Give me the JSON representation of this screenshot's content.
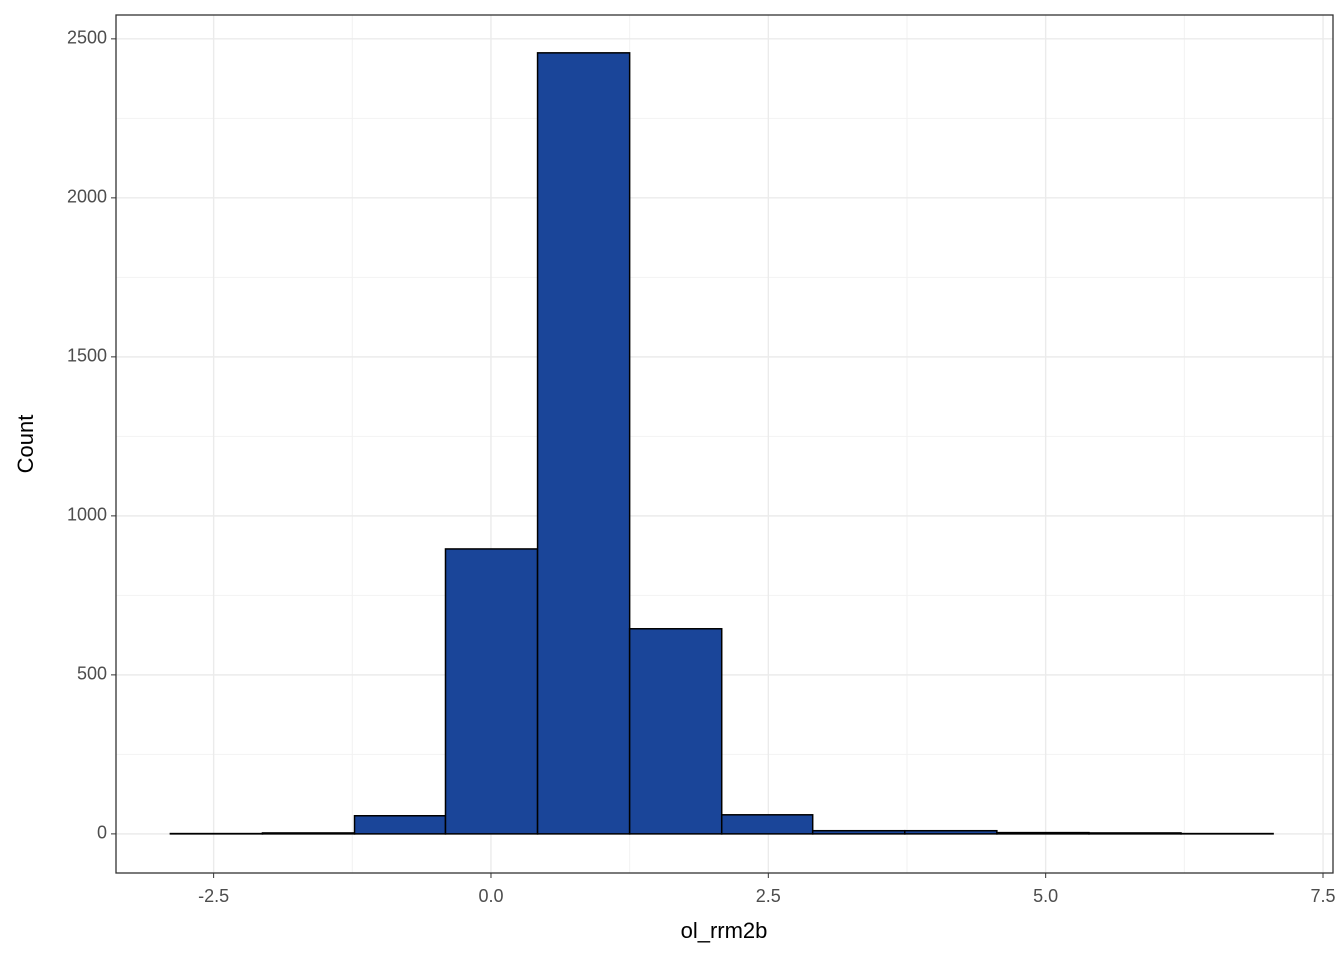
{
  "chart_data": {
    "type": "histogram",
    "x_label": "ol_rrm2b",
    "y_label": "Count",
    "bins": [
      -2.89,
      -2.06,
      -1.23,
      -0.41,
      0.42,
      1.25,
      2.08,
      2.9,
      3.73,
      4.56,
      5.39,
      6.22,
      7.05
    ],
    "counts": [
      1,
      3,
      57,
      896,
      2456,
      645,
      60,
      10,
      10,
      4,
      3,
      1
    ],
    "color": "#1a4599",
    "edge_color": "#000000",
    "xlim": [
      -3.38,
      7.59
    ],
    "ylim": [
      -123,
      2575
    ],
    "xticks": [
      {
        "value": -2.5,
        "label": "-2.5"
      },
      {
        "value": 0,
        "label": "0.0"
      },
      {
        "value": 2.5,
        "label": "2.5"
      },
      {
        "value": 5,
        "label": "5.0"
      },
      {
        "value": 7.5,
        "label": "7.5"
      }
    ],
    "yticks": [
      0,
      500,
      1000,
      1500,
      2000,
      2500
    ],
    "grid": true
  }
}
